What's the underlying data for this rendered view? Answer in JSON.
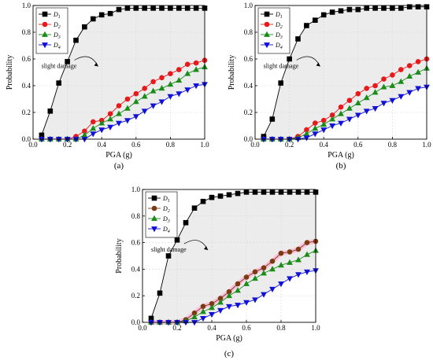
{
  "chart_data": [
    {
      "type": "line",
      "panel_label": "(a)",
      "xlabel": "PGA (g)",
      "ylabel": "Probability",
      "xlim": [
        0,
        1.0
      ],
      "ylim": [
        0,
        1.0
      ],
      "xticks": [
        "0.0",
        "0.2",
        "0.4",
        "0.6",
        "0.8",
        "1.0"
      ],
      "yticks": [
        "0.0",
        "0.2",
        "0.4",
        "0.6",
        "0.8",
        "1.0"
      ],
      "grid": true,
      "legend_position": "top-left",
      "annotation": "slight damage",
      "x": [
        0.05,
        0.1,
        0.15,
        0.2,
        0.25,
        0.3,
        0.35,
        0.4,
        0.45,
        0.5,
        0.55,
        0.6,
        0.65,
        0.7,
        0.75,
        0.8,
        0.85,
        0.9,
        0.95,
        1.0
      ],
      "series": [
        {
          "name": "D",
          "sub": "1",
          "marker": "square",
          "color": "#000000",
          "fill": "#000000",
          "values": [
            0.03,
            0.21,
            0.42,
            0.58,
            0.74,
            0.84,
            0.9,
            0.93,
            0.94,
            0.97,
            0.98,
            0.98,
            0.98,
            0.98,
            0.98,
            0.98,
            0.98,
            0.98,
            0.98,
            0.98
          ]
        },
        {
          "name": "D",
          "sub": "2",
          "marker": "circle",
          "color": "#e8191a",
          "fill": "#e8191a",
          "values": [
            0.0,
            0.0,
            0.0,
            0.0,
            0.02,
            0.06,
            0.13,
            0.14,
            0.19,
            0.25,
            0.3,
            0.34,
            0.38,
            0.43,
            0.46,
            0.49,
            0.52,
            0.56,
            0.57,
            0.59
          ]
        },
        {
          "name": "D",
          "sub": "3",
          "marker": "triangle-up",
          "color": "#1a8c1a",
          "fill": "#1a8c1a",
          "values": [
            0.0,
            0.0,
            0.0,
            0.0,
            0.0,
            0.03,
            0.08,
            0.12,
            0.15,
            0.19,
            0.23,
            0.28,
            0.32,
            0.36,
            0.38,
            0.41,
            0.44,
            0.49,
            0.52,
            0.54
          ]
        },
        {
          "name": "D",
          "sub": "4",
          "marker": "triangle-down",
          "color": "#1010d8",
          "fill": "#1010d8",
          "values": [
            0.0,
            0.0,
            0.0,
            0.0,
            0.0,
            0.0,
            0.04,
            0.07,
            0.09,
            0.12,
            0.14,
            0.17,
            0.21,
            0.25,
            0.28,
            0.32,
            0.34,
            0.37,
            0.4,
            0.41
          ]
        }
      ]
    },
    {
      "type": "line",
      "panel_label": "(b)",
      "xlabel": "PGA (g)",
      "ylabel": "Probability",
      "xlim": [
        0,
        1.0
      ],
      "ylim": [
        0,
        1.0
      ],
      "xticks": [
        "0.0",
        "0.2",
        "0.4",
        "0.6",
        "0.8",
        "1.0"
      ],
      "yticks": [
        "0.0",
        "0.2",
        "0.4",
        "0.6",
        "0.8",
        "1.0"
      ],
      "grid": true,
      "legend_position": "top-left",
      "annotation": "slight damage",
      "x": [
        0.05,
        0.1,
        0.15,
        0.2,
        0.25,
        0.3,
        0.35,
        0.4,
        0.45,
        0.5,
        0.55,
        0.6,
        0.65,
        0.7,
        0.75,
        0.8,
        0.85,
        0.9,
        0.95,
        1.0
      ],
      "series": [
        {
          "name": "D",
          "sub": "1",
          "marker": "square",
          "color": "#000000",
          "fill": "#000000",
          "values": [
            0.02,
            0.15,
            0.42,
            0.6,
            0.75,
            0.85,
            0.89,
            0.93,
            0.95,
            0.96,
            0.97,
            0.97,
            0.98,
            0.98,
            0.98,
            0.98,
            0.98,
            0.99,
            0.99,
            0.99
          ]
        },
        {
          "name": "D",
          "sub": "2",
          "marker": "circle",
          "color": "#e8191a",
          "fill": "#e8191a",
          "values": [
            0.0,
            0.0,
            0.0,
            0.0,
            0.02,
            0.07,
            0.12,
            0.14,
            0.18,
            0.24,
            0.29,
            0.34,
            0.38,
            0.4,
            0.45,
            0.48,
            0.52,
            0.55,
            0.58,
            0.6
          ]
        },
        {
          "name": "D",
          "sub": "3",
          "marker": "triangle-up",
          "color": "#1a8c1a",
          "fill": "#1a8c1a",
          "values": [
            0.0,
            0.0,
            0.0,
            0.0,
            0.01,
            0.04,
            0.08,
            0.11,
            0.15,
            0.19,
            0.23,
            0.27,
            0.31,
            0.35,
            0.39,
            0.4,
            0.43,
            0.47,
            0.5,
            0.53
          ]
        },
        {
          "name": "D",
          "sub": "4",
          "marker": "triangle-down",
          "color": "#1010d8",
          "fill": "#1010d8",
          "values": [
            0.0,
            0.0,
            0.0,
            0.0,
            0.0,
            0.01,
            0.04,
            0.07,
            0.1,
            0.12,
            0.15,
            0.18,
            0.21,
            0.23,
            0.27,
            0.29,
            0.32,
            0.35,
            0.38,
            0.39
          ]
        }
      ]
    },
    {
      "type": "line",
      "panel_label": "(c)",
      "xlabel": "PGA (g)",
      "ylabel": "Probability",
      "xlim": [
        0,
        1.0
      ],
      "ylim": [
        0,
        1.0
      ],
      "xticks": [
        "0.0",
        "0.2",
        "0.4",
        "0.6",
        "0.8",
        "1.0"
      ],
      "yticks": [
        "0.0",
        "0.2",
        "0.4",
        "0.6",
        "0.8",
        "1.0"
      ],
      "grid": true,
      "legend_position": "top-left",
      "annotation": "slight damage",
      "x": [
        0.05,
        0.1,
        0.15,
        0.2,
        0.25,
        0.3,
        0.35,
        0.4,
        0.45,
        0.5,
        0.55,
        0.6,
        0.65,
        0.7,
        0.75,
        0.8,
        0.85,
        0.9,
        0.95,
        1.0
      ],
      "series": [
        {
          "name": "D",
          "sub": "1",
          "marker": "square",
          "color": "#000000",
          "fill": "#000000",
          "values": [
            0.03,
            0.22,
            0.5,
            0.62,
            0.75,
            0.86,
            0.91,
            0.94,
            0.95,
            0.96,
            0.97,
            0.98,
            0.98,
            0.98,
            0.98,
            0.98,
            0.98,
            0.98,
            0.98,
            0.98
          ]
        },
        {
          "name": "D",
          "sub": "2",
          "marker": "circle",
          "color": "#7a3b10",
          "fill": "#7a3b10",
          "values": [
            0.0,
            0.0,
            0.0,
            0.0,
            0.02,
            0.07,
            0.12,
            0.14,
            0.18,
            0.23,
            0.29,
            0.34,
            0.38,
            0.41,
            0.46,
            0.52,
            0.53,
            0.55,
            0.6,
            0.61
          ]
        },
        {
          "name": "D",
          "sub": "3",
          "marker": "triangle-up",
          "color": "#1a8c1a",
          "fill": "#1a8c1a",
          "values": [
            0.0,
            0.0,
            0.0,
            0.0,
            0.01,
            0.04,
            0.08,
            0.11,
            0.15,
            0.2,
            0.24,
            0.29,
            0.33,
            0.37,
            0.4,
            0.43,
            0.45,
            0.47,
            0.51,
            0.54
          ]
        },
        {
          "name": "D",
          "sub": "4",
          "marker": "triangle-down",
          "color": "#1010d8",
          "fill": "#1010d8",
          "values": [
            0.0,
            0.0,
            0.0,
            0.0,
            0.0,
            0.0,
            0.03,
            0.06,
            0.09,
            0.12,
            0.13,
            0.15,
            0.17,
            0.21,
            0.25,
            0.29,
            0.33,
            0.36,
            0.38,
            0.39
          ]
        }
      ],
      "highlight_series_index": 1,
      "highlight_color": "#ffb3d9"
    }
  ]
}
